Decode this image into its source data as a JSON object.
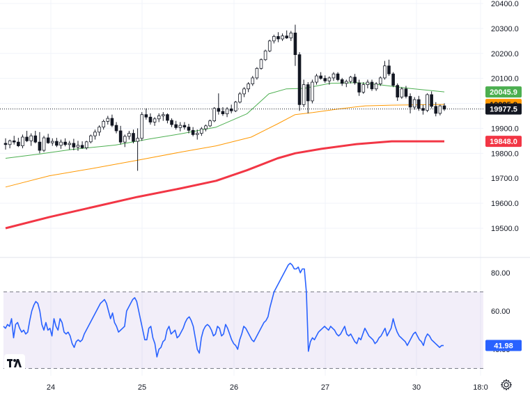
{
  "chart_data": [
    {
      "type": "candlestick",
      "ylim": [
        19400,
        20400
      ],
      "y_ticks": [
        "20400.0",
        "20300.0",
        "20200.0",
        "20100.0",
        "19900.0",
        "19800.0",
        "19700.0",
        "19600.0",
        "19500.0"
      ],
      "x_ticks": [
        "24",
        "25",
        "26",
        "27",
        "30",
        "18:0"
      ],
      "grid": true,
      "last_price_line": 19977.5,
      "badges": [
        {
          "label": "20045.9",
          "value": 20045.9,
          "color": "#4caf50",
          "text_color": "#ffffff"
        },
        {
          "label": "19995.8",
          "value": 19995.8,
          "color": "#ff9800",
          "text_color": "#131722"
        },
        {
          "label": "19977.5",
          "value": 19977.5,
          "color": "#131722",
          "text_color": "#ffffff"
        },
        {
          "label": "19848.0",
          "value": 19848.0,
          "color": "#f23645",
          "text_color": "#ffffff"
        }
      ],
      "candle_up_color": "#ffffff",
      "candle_down_color": "#131722",
      "candles": [
        [
          19840,
          19860,
          19815,
          19835
        ],
        [
          19835,
          19855,
          19820,
          19850
        ],
        [
          19850,
          19870,
          19835,
          19845
        ],
        [
          19845,
          19862,
          19825,
          19830
        ],
        [
          19830,
          19875,
          19820,
          19865
        ],
        [
          19865,
          19890,
          19845,
          19850
        ],
        [
          19850,
          19880,
          19830,
          19870
        ],
        [
          19870,
          19890,
          19840,
          19845
        ],
        [
          19845,
          19885,
          19800,
          19812
        ],
        [
          19812,
          19870,
          19805,
          19862
        ],
        [
          19862,
          19878,
          19838,
          19842
        ],
        [
          19842,
          19860,
          19830,
          19848
        ],
        [
          19848,
          19862,
          19825,
          19832
        ],
        [
          19832,
          19855,
          19818,
          19845
        ],
        [
          19845,
          19860,
          19828,
          19835
        ],
        [
          19835,
          19850,
          19815,
          19840
        ],
        [
          19840,
          19858,
          19812,
          19825
        ],
        [
          19825,
          19850,
          19810,
          19832
        ],
        [
          19832,
          19848,
          19818,
          19822
        ],
        [
          19822,
          19850,
          19815,
          19846
        ],
        [
          19846,
          19875,
          19840,
          19870
        ],
        [
          19870,
          19895,
          19855,
          19885
        ],
        [
          19885,
          19912,
          19870,
          19905
        ],
        [
          19905,
          19935,
          19895,
          19928
        ],
        [
          19928,
          19950,
          19915,
          19940
        ],
        [
          19940,
          19955,
          19905,
          19912
        ],
        [
          19912,
          19925,
          19880,
          19890
        ],
        [
          19890,
          19910,
          19835,
          19845
        ],
        [
          19845,
          19875,
          19825,
          19868
        ],
        [
          19868,
          19890,
          19855,
          19880
        ],
        [
          19880,
          19895,
          19840,
          19848
        ],
        [
          19848,
          19900,
          19730,
          19860
        ],
        [
          19860,
          19965,
          19850,
          19955
        ],
        [
          19955,
          19980,
          19935,
          19945
        ],
        [
          19945,
          19960,
          19915,
          19925
        ],
        [
          19925,
          19945,
          19910,
          19938
        ],
        [
          19938,
          19960,
          19925,
          19950
        ],
        [
          19950,
          19965,
          19930,
          19955
        ],
        [
          19955,
          19960,
          19920,
          19932
        ],
        [
          19932,
          19940,
          19905,
          19915
        ],
        [
          19915,
          19930,
          19895,
          19903
        ],
        [
          19903,
          19925,
          19888,
          19912
        ],
        [
          19912,
          19925,
          19895,
          19905
        ],
        [
          19905,
          19918,
          19880,
          19892
        ],
        [
          19892,
          19905,
          19868,
          19875
        ],
        [
          19875,
          19895,
          19855,
          19880
        ],
        [
          19880,
          19905,
          19870,
          19898
        ],
        [
          19898,
          19915,
          19888,
          19910
        ],
        [
          19910,
          19935,
          19905,
          19930
        ],
        [
          19930,
          19985,
          19925,
          19980
        ],
        [
          19980,
          20040,
          19955,
          19968
        ],
        [
          19968,
          19985,
          19950,
          19958
        ],
        [
          19958,
          19985,
          19945,
          19978
        ],
        [
          19978,
          19995,
          19960,
          19970
        ],
        [
          19970,
          20010,
          19965,
          20005
        ],
        [
          20005,
          20045,
          20000,
          20038
        ],
        [
          20038,
          20065,
          20025,
          20058
        ],
        [
          20058,
          20085,
          20045,
          20078
        ],
        [
          20078,
          20110,
          20070,
          20102
        ],
        [
          20102,
          20145,
          20095,
          20140
        ],
        [
          20140,
          20180,
          20135,
          20175
        ],
        [
          20175,
          20215,
          20170,
          20210
        ],
        [
          20210,
          20255,
          20205,
          20250
        ],
        [
          20250,
          20275,
          20240,
          20268
        ],
        [
          20268,
          20285,
          20245,
          20258
        ],
        [
          20258,
          20280,
          20250,
          20270
        ],
        [
          20270,
          20292,
          20258,
          20262
        ],
        [
          20262,
          20290,
          20250,
          20282
        ],
        [
          20282,
          20315,
          20150,
          20195
        ],
        [
          20195,
          20205,
          19970,
          19995
        ],
        [
          19995,
          20095,
          19985,
          20075
        ],
        [
          20075,
          20085,
          19960,
          20010
        ],
        [
          20010,
          20095,
          20000,
          20085
        ],
        [
          20085,
          20118,
          20075,
          20110
        ],
        [
          20110,
          20125,
          20095,
          20100
        ],
        [
          20100,
          20112,
          20082,
          20090
        ],
        [
          20090,
          20108,
          20075,
          20102
        ],
        [
          20102,
          20125,
          20090,
          20118
        ],
        [
          20118,
          20125,
          20088,
          20095
        ],
        [
          20095,
          20102,
          20070,
          20080
        ],
        [
          20080,
          20095,
          20065,
          20088
        ],
        [
          20088,
          20110,
          20080,
          20105
        ],
        [
          20105,
          20118,
          20075,
          20082
        ],
        [
          20082,
          20095,
          20030,
          20045
        ],
        [
          20045,
          20085,
          20038,
          20075
        ],
        [
          20075,
          20095,
          20060,
          20085
        ],
        [
          20085,
          20095,
          20050,
          20058
        ],
        [
          20058,
          20085,
          20050,
          20078
        ],
        [
          20078,
          20108,
          20070,
          20102
        ],
        [
          20102,
          20170,
          20095,
          20150
        ],
        [
          20150,
          20175,
          20110,
          20118
        ],
        [
          20118,
          20125,
          20065,
          20072
        ],
        [
          20072,
          20080,
          20010,
          20025
        ],
        [
          20025,
          20065,
          20018,
          20058
        ],
        [
          20058,
          20070,
          20020,
          20028
        ],
        [
          20028,
          20040,
          19960,
          19985
        ],
        [
          19985,
          20025,
          19975,
          20015
        ],
        [
          20015,
          20030,
          19970,
          19980
        ],
        [
          19980,
          19995,
          19955,
          19972
        ],
        [
          19972,
          20040,
          19965,
          20035
        ],
        [
          20035,
          20048,
          19980,
          19988
        ],
        [
          19988,
          20005,
          19948,
          19960
        ],
        [
          19960,
          19995,
          19952,
          19990
        ],
        [
          19990,
          20000,
          19970,
          19977
        ]
      ],
      "series": [
        {
          "name": "",
          "color": "#4caf50",
          "width": 1,
          "values": [
            [
              0,
              19780
            ],
            [
              0.08,
              19798
            ],
            [
              0.15,
              19815
            ],
            [
              0.25,
              19833
            ],
            [
              0.33,
              19858
            ],
            [
              0.4,
              19878
            ],
            [
              0.48,
              19905
            ],
            [
              0.55,
              19958
            ],
            [
              0.6,
              20038
            ],
            [
              0.64,
              20058
            ],
            [
              0.68,
              20060
            ],
            [
              0.74,
              20080
            ],
            [
              0.8,
              20083
            ],
            [
              0.85,
              20075
            ],
            [
              0.92,
              20060
            ],
            [
              1.0,
              20045.9
            ]
          ]
        },
        {
          "name": "",
          "color": "#ff9800",
          "width": 1,
          "values": [
            [
              0,
              19665
            ],
            [
              0.1,
              19710
            ],
            [
              0.2,
              19740
            ],
            [
              0.3,
              19772
            ],
            [
              0.4,
              19805
            ],
            [
              0.48,
              19830
            ],
            [
              0.56,
              19865
            ],
            [
              0.62,
              19918
            ],
            [
              0.66,
              19955
            ],
            [
              0.7,
              19963
            ],
            [
              0.76,
              19978
            ],
            [
              0.82,
              19990
            ],
            [
              0.88,
              19993
            ],
            [
              1.0,
              19995.8
            ]
          ]
        },
        {
          "name": "",
          "color": "#f23645",
          "width": 3,
          "values": [
            [
              0,
              19500
            ],
            [
              0.1,
              19545
            ],
            [
              0.2,
              19585
            ],
            [
              0.3,
              19625
            ],
            [
              0.4,
              19660
            ],
            [
              0.48,
              19690
            ],
            [
              0.55,
              19732
            ],
            [
              0.62,
              19780
            ],
            [
              0.66,
              19800
            ],
            [
              0.72,
              19818
            ],
            [
              0.8,
              19837
            ],
            [
              0.88,
              19848
            ],
            [
              1.0,
              19848.0
            ]
          ]
        }
      ]
    },
    {
      "type": "line",
      "ylim": [
        25,
        90
      ],
      "y_ticks": [
        "80.00",
        "60.00",
        "40.00"
      ],
      "band": [
        30,
        70
      ],
      "band_color": "#7e57c2",
      "series": [
        {
          "name": "",
          "color": "#2962ff",
          "last_label": "41.98",
          "values": [
            52,
            51,
            53,
            52,
            56,
            46,
            53,
            54,
            51,
            49,
            50,
            48,
            49,
            55,
            60,
            63,
            65,
            64,
            60,
            53,
            50,
            54,
            50,
            51,
            47,
            56,
            52,
            50,
            56,
            54,
            49,
            48,
            49,
            47,
            43,
            41,
            44,
            45,
            44,
            45,
            48,
            50,
            52,
            54,
            56,
            58,
            60,
            62,
            64,
            65,
            66,
            64,
            60,
            56,
            59,
            54,
            52,
            49,
            50,
            51,
            52,
            60,
            62,
            64,
            66,
            67,
            65,
            60,
            55,
            50,
            45,
            45,
            51,
            52,
            46,
            43,
            36,
            40,
            41,
            44,
            45,
            50,
            52,
            48,
            49,
            50,
            46,
            47,
            49,
            51,
            54,
            56,
            57,
            55,
            52,
            46,
            40,
            38,
            46,
            50,
            52,
            53,
            52,
            50,
            47,
            48,
            52,
            51,
            47,
            48,
            53,
            51,
            48,
            45,
            43,
            42,
            40,
            45,
            48,
            52,
            51,
            49,
            47,
            45,
            44,
            46,
            48,
            50,
            52,
            54,
            55,
            57,
            62,
            66,
            70,
            72,
            74,
            76,
            78,
            80,
            82,
            84,
            85,
            84,
            82,
            82,
            83,
            80,
            82,
            82,
            70,
            39,
            44,
            46,
            45,
            47,
            49,
            50,
            51,
            52,
            51,
            50,
            52,
            51,
            50,
            48,
            47,
            48,
            50,
            52,
            48,
            47,
            48,
            46,
            44,
            43,
            46,
            45,
            48,
            51,
            49,
            47,
            46,
            45,
            43,
            44,
            46,
            47,
            49,
            51,
            47,
            49,
            51,
            56,
            52,
            49,
            47,
            46,
            45,
            44,
            42,
            44,
            46,
            48,
            49,
            47,
            45,
            44,
            42,
            46,
            48,
            47,
            45,
            44,
            43,
            42,
            41,
            42,
            41.98
          ]
        }
      ]
    }
  ]
}
